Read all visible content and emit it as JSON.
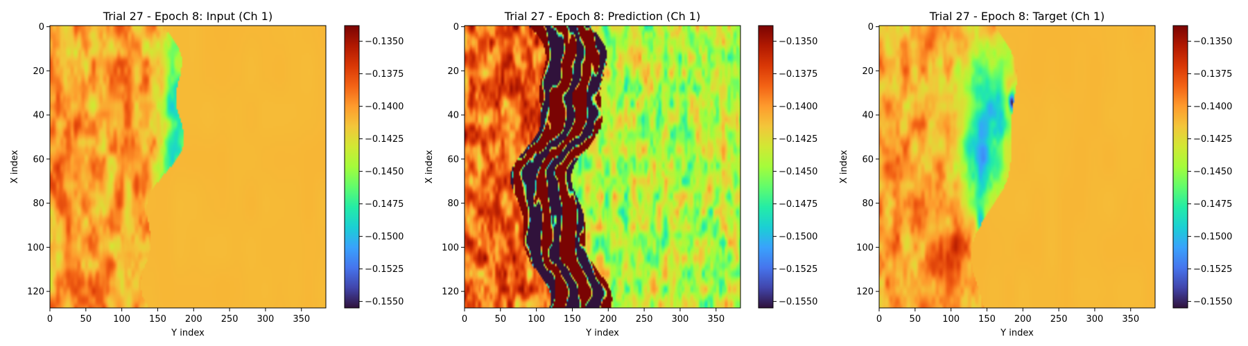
{
  "chart_data": [
    {
      "type": "heatmap",
      "title": "Trial 27 - Epoch 8: Input (Ch 1)",
      "xlabel": "Y index",
      "ylabel": "X index",
      "x_ticks": [
        0,
        50,
        100,
        150,
        200,
        250,
        300,
        350
      ],
      "y_ticks": [
        0,
        20,
        40,
        60,
        80,
        100,
        120
      ],
      "x_range": [
        0,
        383
      ],
      "y_range": [
        0,
        127
      ],
      "y_inverted": true,
      "colormap": "turbo",
      "colorbar": {
        "vmin": -0.1555,
        "vmax": -0.1338,
        "ticks": [
          "-0.1350",
          "-0.1375",
          "-0.1400",
          "-0.1425",
          "-0.1450",
          "-0.1475",
          "-0.1500",
          "-0.1525",
          "-0.1550"
        ]
      }
    },
    {
      "type": "heatmap",
      "title": "Trial 27 - Epoch 8: Prediction (Ch 1)",
      "xlabel": "Y index",
      "ylabel": "X index",
      "x_ticks": [
        0,
        50,
        100,
        150,
        200,
        250,
        300,
        350
      ],
      "y_ticks": [
        0,
        20,
        40,
        60,
        80,
        100,
        120
      ],
      "x_range": [
        0,
        383
      ],
      "y_range": [
        0,
        127
      ],
      "y_inverted": true,
      "colormap": "turbo",
      "colorbar": {
        "vmin": -0.1555,
        "vmax": -0.1338,
        "ticks": [
          "-0.1350",
          "-0.1375",
          "-0.1400",
          "-0.1425",
          "-0.1450",
          "-0.1475",
          "-0.1500",
          "-0.1525",
          "-0.1550"
        ]
      }
    },
    {
      "type": "heatmap",
      "title": "Trial 27 - Epoch 8: Target (Ch 1)",
      "xlabel": "Y index",
      "ylabel": "X index",
      "x_ticks": [
        0,
        50,
        100,
        150,
        200,
        250,
        300,
        350
      ],
      "y_ticks": [
        0,
        20,
        40,
        60,
        80,
        100,
        120
      ],
      "x_range": [
        0,
        383
      ],
      "y_range": [
        0,
        127
      ],
      "y_inverted": true,
      "colormap": "turbo",
      "colorbar": {
        "vmin": -0.1555,
        "vmax": -0.1338,
        "ticks": [
          "-0.1350",
          "-0.1375",
          "-0.1400",
          "-0.1425",
          "-0.1450",
          "-0.1475",
          "-0.1500",
          "-0.1525",
          "-0.1550"
        ]
      }
    }
  ],
  "colors": {
    "turbo_stops": [
      "#30123b",
      "#4145ab",
      "#4675ed",
      "#39a2fc",
      "#1bcfd4",
      "#24eca6",
      "#61fc6c",
      "#a4fc3b",
      "#d1e834",
      "#f3c63a",
      "#fe9b2d",
      "#f36315",
      "#d93806",
      "#b11901",
      "#7a0403"
    ],
    "background": "#ffffff"
  }
}
